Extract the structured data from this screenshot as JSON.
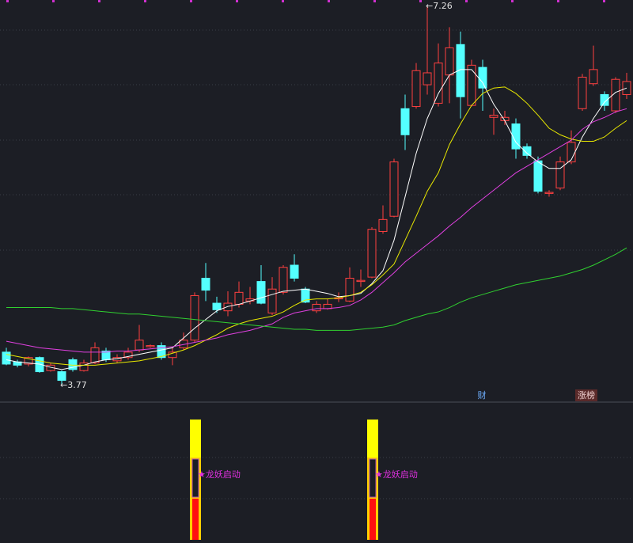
{
  "chart_data": {
    "type": "candlestick",
    "ylim": [
      3.61,
      7.31
    ],
    "up_color": "#ff4040",
    "down_color": "#54ffff",
    "open": [
      4.07,
      3.98,
      3.96,
      4.02,
      3.9,
      3.89,
      4.0,
      3.9,
      3.97,
      4.08,
      3.99,
      4.02,
      4.09,
      4.12,
      4.13,
      4.02,
      4.11,
      4.18,
      4.75,
      4.52,
      4.45,
      4.51,
      4.54,
      4.72,
      4.43,
      4.62,
      4.87,
      4.65,
      4.45,
      4.47,
      4.56,
      4.54,
      4.72,
      4.76,
      5.18,
      5.32,
      6.31,
      6.33,
      6.53,
      6.36,
      6.62,
      6.9,
      6.34,
      6.69,
      6.23,
      6.2,
      6.17,
      5.96,
      5.83,
      5.53,
      5.58,
      5.82,
      6.31,
      6.54,
      6.44,
      6.29,
      6.44
    ],
    "high": [
      4.11,
      4.0,
      4.03,
      4.03,
      3.97,
      3.9,
      4.02,
      4.0,
      4.16,
      4.11,
      4.05,
      4.11,
      4.32,
      4.14,
      4.16,
      4.11,
      4.25,
      4.62,
      4.89,
      4.58,
      4.63,
      4.72,
      4.67,
      4.87,
      4.76,
      4.87,
      4.97,
      4.67,
      4.54,
      4.56,
      4.62,
      4.85,
      4.83,
      5.22,
      5.42,
      5.85,
      6.44,
      6.73,
      7.26,
      6.91,
      7.06,
      7.02,
      6.76,
      6.76,
      6.31,
      6.29,
      6.22,
      5.99,
      5.87,
      5.56,
      5.87,
      6.11,
      6.63,
      6.89,
      6.47,
      6.6,
      6.64
    ],
    "low": [
      3.95,
      3.93,
      3.94,
      3.88,
      3.89,
      3.77,
      3.89,
      3.89,
      3.96,
      3.98,
      3.97,
      4.0,
      4.07,
      4.11,
      4.0,
      3.95,
      4.09,
      4.16,
      4.54,
      4.43,
      4.4,
      4.48,
      4.51,
      4.51,
      4.41,
      4.6,
      4.72,
      4.52,
      4.43,
      4.46,
      4.53,
      4.53,
      4.67,
      4.75,
      5.16,
      5.31,
      5.93,
      6.31,
      6.44,
      6.33,
      6.36,
      6.22,
      6.33,
      6.29,
      6.07,
      6.16,
      5.85,
      5.85,
      5.53,
      5.5,
      5.56,
      5.8,
      6.29,
      6.52,
      6.29,
      6.27,
      6.4
    ],
    "close": [
      3.96,
      3.95,
      4.02,
      3.89,
      3.95,
      3.81,
      3.91,
      3.97,
      4.11,
      4.0,
      4.02,
      4.07,
      4.18,
      4.13,
      4.02,
      4.07,
      4.18,
      4.59,
      4.64,
      4.46,
      4.52,
      4.62,
      4.56,
      4.52,
      4.65,
      4.85,
      4.75,
      4.53,
      4.51,
      4.51,
      4.57,
      4.75,
      4.73,
      5.2,
      5.29,
      5.82,
      6.07,
      6.66,
      6.64,
      6.73,
      6.87,
      6.42,
      6.71,
      6.5,
      6.25,
      6.23,
      5.94,
      5.88,
      5.55,
      5.54,
      5.82,
      6.0,
      6.6,
      6.67,
      6.34,
      6.58,
      6.56
    ],
    "lines": [
      {
        "color": "#ffffff",
        "values": [
          4.0,
          3.98,
          3.97,
          3.96,
          3.93,
          3.91,
          3.93,
          3.95,
          3.98,
          4.0,
          4.01,
          4.03,
          4.05,
          4.07,
          4.09,
          4.11,
          4.2,
          4.29,
          4.37,
          4.45,
          4.49,
          4.51,
          4.54,
          4.57,
          4.6,
          4.63,
          4.64,
          4.65,
          4.63,
          4.61,
          4.58,
          4.59,
          4.61,
          4.7,
          4.82,
          5.1,
          5.5,
          5.9,
          6.22,
          6.45,
          6.62,
          6.67,
          6.67,
          6.55,
          6.35,
          6.2,
          6.0,
          5.9,
          5.82,
          5.76,
          5.76,
          5.84,
          6.05,
          6.22,
          6.37,
          6.46,
          6.5
        ]
      },
      {
        "color": "#e8e800",
        "values": [
          4.05,
          4.03,
          4.01,
          3.99,
          3.97,
          3.96,
          3.95,
          3.95,
          3.95,
          3.96,
          3.97,
          3.98,
          3.99,
          4.01,
          4.03,
          4.06,
          4.09,
          4.13,
          4.18,
          4.23,
          4.29,
          4.33,
          4.36,
          4.38,
          4.4,
          4.44,
          4.5,
          4.55,
          4.56,
          4.56,
          4.57,
          4.59,
          4.62,
          4.69,
          4.78,
          4.88,
          5.1,
          5.32,
          5.55,
          5.72,
          5.98,
          6.17,
          6.34,
          6.45,
          6.5,
          6.51,
          6.45,
          6.36,
          6.25,
          6.13,
          6.07,
          6.03,
          6.01,
          6.01,
          6.05,
          6.13,
          6.2
        ]
      },
      {
        "color": "#e040e0",
        "values": [
          4.17,
          4.15,
          4.13,
          4.11,
          4.1,
          4.09,
          4.08,
          4.07,
          4.07,
          4.07,
          4.08,
          4.08,
          4.09,
          4.1,
          4.11,
          4.12,
          4.14,
          4.16,
          4.18,
          4.2,
          4.23,
          4.25,
          4.27,
          4.3,
          4.33,
          4.39,
          4.43,
          4.45,
          4.47,
          4.47,
          4.48,
          4.5,
          4.55,
          4.62,
          4.71,
          4.8,
          4.9,
          4.98,
          5.06,
          5.14,
          5.23,
          5.31,
          5.4,
          5.48,
          5.56,
          5.64,
          5.72,
          5.78,
          5.84,
          5.9,
          5.96,
          6.02,
          6.12,
          6.19,
          6.23,
          6.28,
          6.31
        ]
      },
      {
        "color": "#30d030",
        "values": [
          4.48,
          4.48,
          4.48,
          4.48,
          4.48,
          4.47,
          4.47,
          4.46,
          4.45,
          4.44,
          4.43,
          4.42,
          4.42,
          4.41,
          4.4,
          4.39,
          4.38,
          4.37,
          4.36,
          4.35,
          4.34,
          4.33,
          4.32,
          4.31,
          4.3,
          4.29,
          4.28,
          4.28,
          4.27,
          4.27,
          4.27,
          4.27,
          4.28,
          4.29,
          4.3,
          4.32,
          4.36,
          4.39,
          4.42,
          4.44,
          4.48,
          4.53,
          4.57,
          4.6,
          4.63,
          4.66,
          4.69,
          4.71,
          4.73,
          4.75,
          4.77,
          4.8,
          4.83,
          4.87,
          4.92,
          4.97,
          5.03
        ]
      }
    ],
    "annotations": [
      "←7.26",
      "←3.77"
    ],
    "markers": [
      "财",
      "涨榜"
    ],
    "signals": [
      "★龙妖启动",
      "★龙妖启动"
    ]
  }
}
